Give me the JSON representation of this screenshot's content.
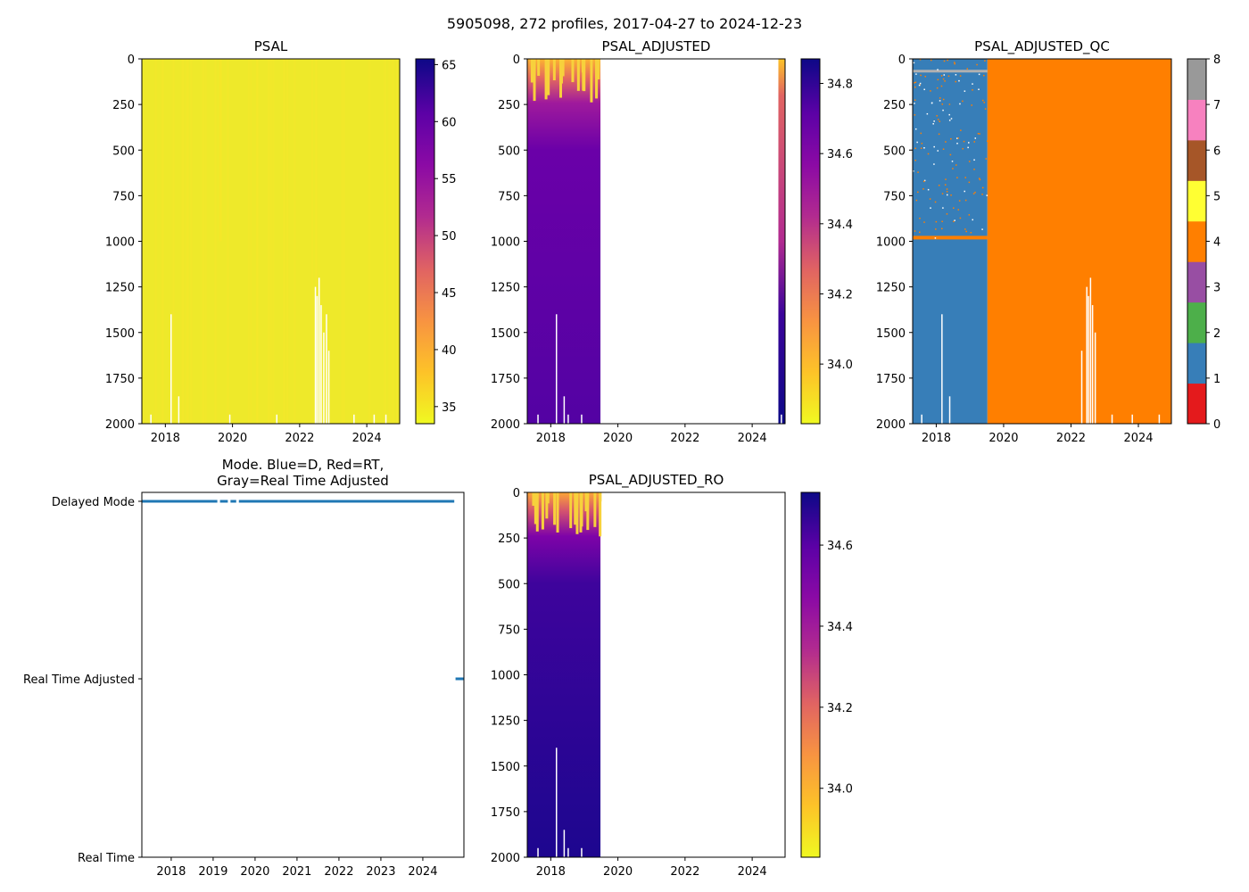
{
  "figure_title": "5905098, 272 profiles, 2017-04-27 to 2024-12-23",
  "chart_data": [
    {
      "type": "heatmap",
      "title": "PSAL",
      "xlabel": "",
      "ylabel": "",
      "xlim": [
        2017.3,
        2024.98
      ],
      "ylim": [
        2000,
        0
      ],
      "xticks": [
        "2018",
        "2020",
        "2022",
        "2024"
      ],
      "xtick_values": [
        2018,
        2020,
        2022,
        2024
      ],
      "yticks": [
        "0",
        "250",
        "500",
        "750",
        "1000",
        "1250",
        "1500",
        "1750",
        "2000"
      ],
      "ytick_values": [
        0,
        250,
        500,
        750,
        1000,
        1250,
        1500,
        1750,
        2000
      ],
      "colormap": "plasma_r",
      "colorbar_range": [
        33.5,
        65.5
      ],
      "colorbar_ticks": [
        "35",
        "40",
        "45",
        "50",
        "55",
        "60",
        "65"
      ],
      "colorbar_tick_values": [
        35,
        40,
        45,
        50,
        55,
        60,
        65
      ],
      "dominant_color": "#eee92a",
      "data_coverage": [
        2017.3,
        2024.98
      ]
    },
    {
      "type": "heatmap",
      "title": "PSAL_ADJUSTED",
      "xlim": [
        2017.3,
        2024.98
      ],
      "ylim": [
        2000,
        0
      ],
      "xticks": [
        "2018",
        "2020",
        "2022",
        "2024"
      ],
      "xtick_values": [
        2018,
        2020,
        2022,
        2024
      ],
      "yticks": [
        "0",
        "250",
        "500",
        "750",
        "1000",
        "1250",
        "1500",
        "1750",
        "2000"
      ],
      "ytick_values": [
        0,
        250,
        500,
        750,
        1000,
        1250,
        1500,
        1750,
        2000
      ],
      "colormap": "plasma_r",
      "colorbar_range": [
        33.83,
        34.87
      ],
      "colorbar_ticks": [
        "34.0",
        "34.2",
        "34.4",
        "34.6",
        "34.8"
      ],
      "colorbar_tick_values": [
        34.0,
        34.2,
        34.4,
        34.6,
        34.8
      ],
      "data_coverage": [
        [
          2017.3,
          2019.48
        ],
        [
          2024.75,
          2024.98
        ]
      ]
    },
    {
      "type": "heatmap",
      "title": "PSAL_ADJUSTED_QC",
      "xlim": [
        2017.3,
        2024.98
      ],
      "ylim": [
        2000,
        0
      ],
      "xticks": [
        "2018",
        "2020",
        "2022",
        "2024"
      ],
      "xtick_values": [
        2018,
        2020,
        2022,
        2024
      ],
      "yticks": [
        "0",
        "250",
        "500",
        "750",
        "1000",
        "1250",
        "1500",
        "1750",
        "2000"
      ],
      "ytick_values": [
        0,
        250,
        500,
        750,
        1000,
        1250,
        1500,
        1750,
        2000
      ],
      "colorbar_range": [
        0,
        8
      ],
      "colorbar_ticks": [
        "0",
        "1",
        "2",
        "3",
        "4",
        "5",
        "6",
        "7",
        "8"
      ],
      "colorbar_tick_values": [
        0,
        1,
        2,
        3,
        4,
        5,
        6,
        7,
        8
      ],
      "qc_colors": [
        "#e41a1c",
        "#377eb8",
        "#4daf4a",
        "#984ea3",
        "#ff7f00",
        "#ffff33",
        "#a65628",
        "#f781bf",
        "#999999"
      ],
      "regions": [
        {
          "x_from": 2017.3,
          "x_to": 2019.52,
          "qc": 1
        },
        {
          "x_from": 2019.52,
          "x_to": 2024.98,
          "qc": 4
        }
      ]
    },
    {
      "type": "scatter",
      "title": "Mode. Blue=D, Red=RT,\nGray=Real Time Adjusted",
      "title_lines": [
        "Mode. Blue=D, Red=RT,",
        "Gray=Real Time Adjusted"
      ],
      "xlim": [
        2017.3,
        2024.98
      ],
      "xticks": [
        "2018",
        "2019",
        "2020",
        "2021",
        "2022",
        "2023",
        "2024"
      ],
      "xtick_values": [
        2018,
        2019,
        2020,
        2021,
        2022,
        2023,
        2024
      ],
      "ylim": [
        0,
        2
      ],
      "yticks": [
        "Real Time",
        "Real Time Adjusted",
        "Delayed Mode"
      ],
      "ytick_values": [
        0,
        1,
        2
      ],
      "series": [
        {
          "name": "Delayed Mode",
          "y": 2,
          "x_from": 2017.3,
          "x_to": 2024.75,
          "color": "#1f77b4"
        },
        {
          "name": "Real Time Adjusted",
          "y": 1,
          "x_from": 2024.78,
          "x_to": 2024.98,
          "color": "#1f77b4"
        }
      ]
    },
    {
      "type": "heatmap",
      "title": "PSAL_ADJUSTED_RO",
      "xlim": [
        2017.3,
        2024.98
      ],
      "ylim": [
        2000,
        0
      ],
      "xticks": [
        "2018",
        "2020",
        "2022",
        "2024"
      ],
      "xtick_values": [
        2018,
        2020,
        2022,
        2024
      ],
      "yticks": [
        "0",
        "250",
        "500",
        "750",
        "1000",
        "1250",
        "1500",
        "1750",
        "2000"
      ],
      "ytick_values": [
        0,
        250,
        500,
        750,
        1000,
        1250,
        1500,
        1750,
        2000
      ],
      "colormap": "plasma_r",
      "colorbar_range": [
        33.83,
        34.73
      ],
      "colorbar_ticks": [
        "34.0",
        "34.2",
        "34.4",
        "34.6"
      ],
      "colorbar_tick_values": [
        34.0,
        34.2,
        34.4,
        34.6
      ],
      "data_coverage": [
        [
          2017.3,
          2019.48
        ]
      ]
    }
  ]
}
